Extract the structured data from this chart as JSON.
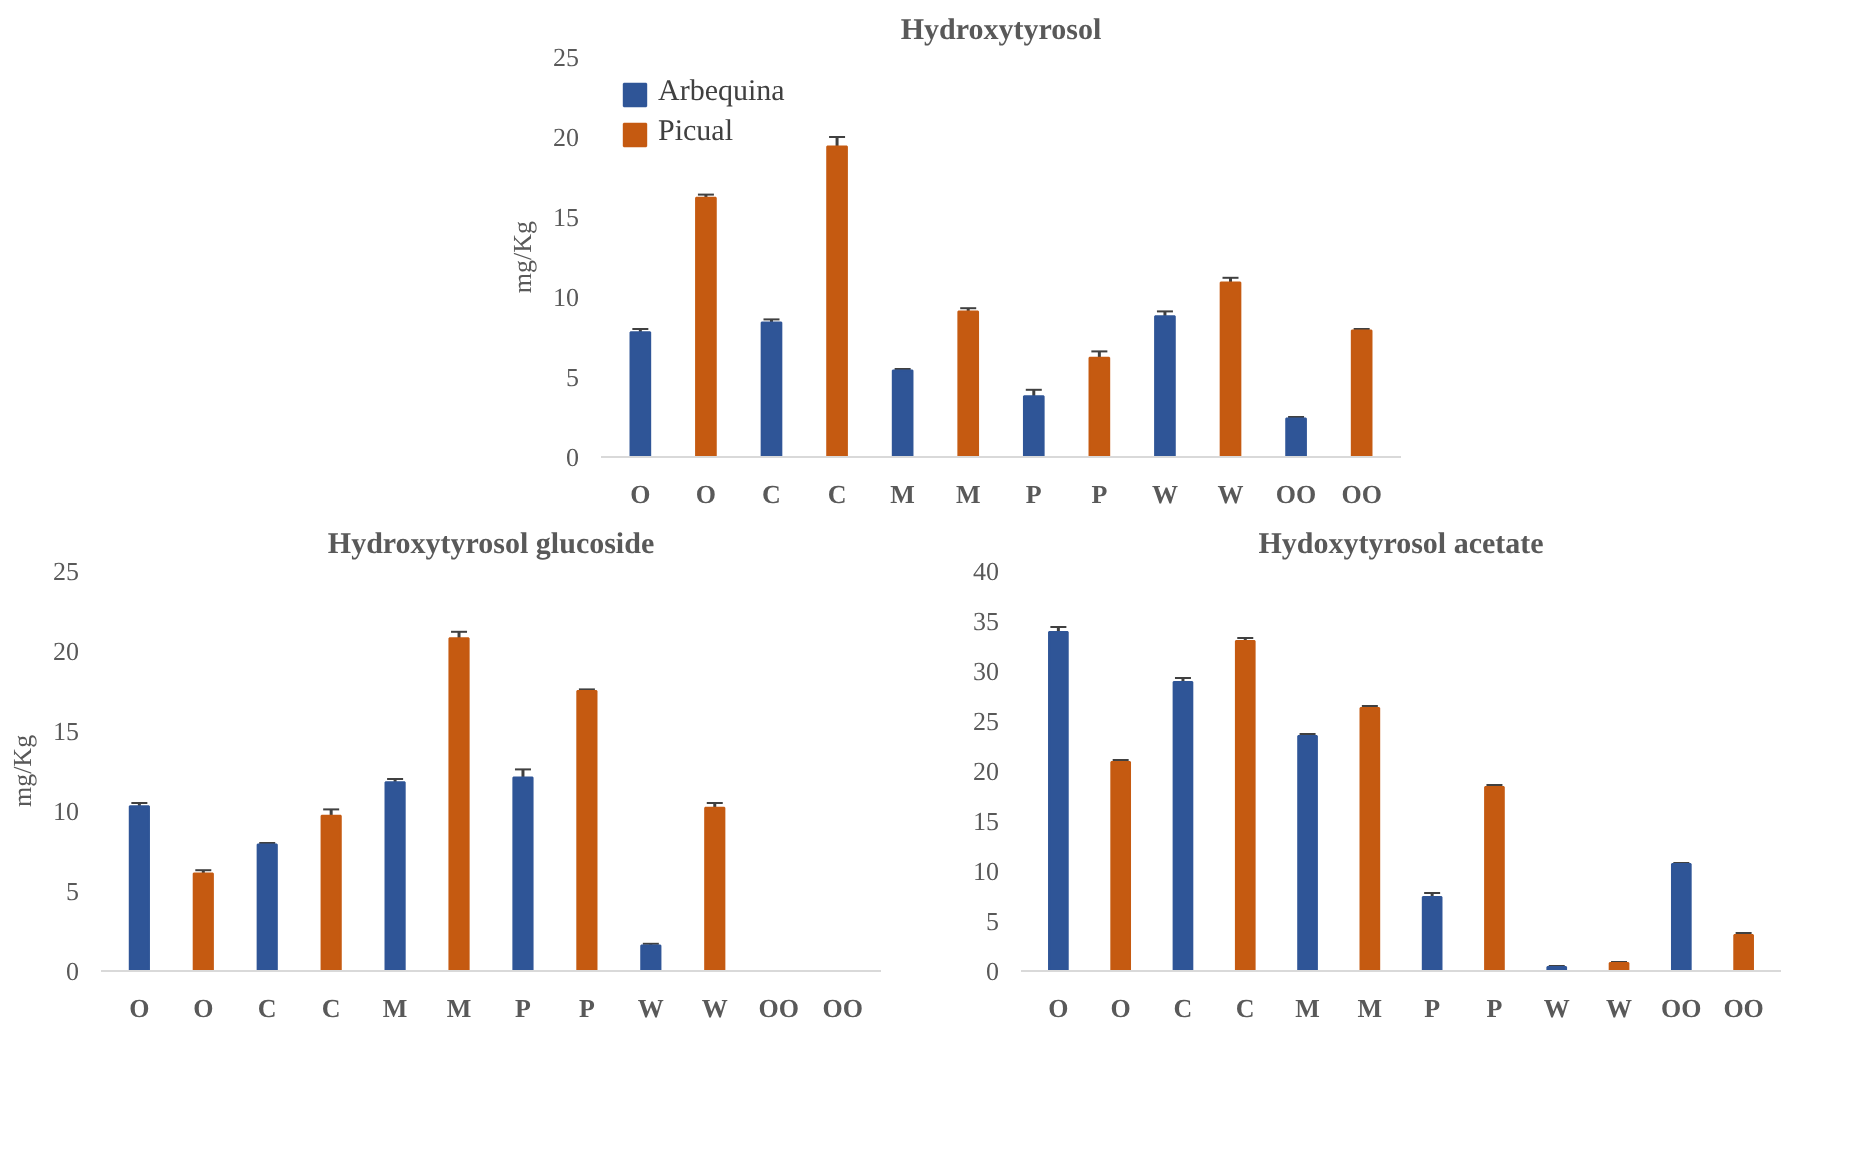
{
  "chart_data": [
    {
      "type": "bar",
      "title": "Hydroxytyrosol",
      "ylabel": "mg/Kg",
      "categories": [
        "O",
        "O",
        "C",
        "C",
        "M",
        "M",
        "P",
        "P",
        "W",
        "W",
        "OO",
        "OO"
      ],
      "ylim": [
        0,
        25
      ],
      "yticks": [
        0,
        5,
        10,
        15,
        20,
        25
      ],
      "grid": false,
      "legend": "top left",
      "series": [
        {
          "name": "Arbequina",
          "color": "#2f5597",
          "values": [
            7.8,
            null,
            8.4,
            null,
            5.4,
            null,
            3.8,
            null,
            8.8,
            null,
            2.4,
            null
          ],
          "errors": [
            0.2,
            null,
            0.2,
            null,
            0.1,
            null,
            0.4,
            null,
            0.3,
            null,
            0.1,
            null
          ]
        },
        {
          "name": "Picual",
          "color": "#c55a11",
          "values": [
            null,
            16.2,
            null,
            19.4,
            null,
            9.1,
            null,
            6.2,
            null,
            10.9,
            null,
            7.9
          ],
          "errors": [
            null,
            0.2,
            null,
            0.6,
            null,
            0.2,
            null,
            0.4,
            null,
            0.3,
            null,
            0.1
          ]
        }
      ]
    },
    {
      "type": "bar",
      "title": "Hydroxytyrosol glucoside",
      "ylabel": "mg/Kg",
      "categories": [
        "O",
        "O",
        "C",
        "C",
        "M",
        "M",
        "P",
        "P",
        "W",
        "W",
        "OO",
        "OO"
      ],
      "ylim": [
        0,
        25
      ],
      "yticks": [
        0,
        5,
        10,
        15,
        20,
        25
      ],
      "grid": false,
      "series": [
        {
          "color": "#2f5597",
          "values": [
            10.3,
            null,
            7.9,
            null,
            11.8,
            null,
            12.1,
            null,
            1.6,
            null,
            null,
            null
          ],
          "errors": [
            0.2,
            null,
            0.1,
            null,
            0.2,
            null,
            0.5,
            null,
            0.1,
            null,
            null,
            null
          ]
        },
        {
          "color": "#c55a11",
          "values": [
            null,
            6.1,
            null,
            9.7,
            null,
            20.8,
            null,
            17.5,
            null,
            10.2,
            null,
            null
          ],
          "errors": [
            null,
            0.2,
            null,
            0.4,
            null,
            0.4,
            null,
            0.1,
            null,
            0.3,
            null,
            null
          ]
        }
      ]
    },
    {
      "type": "bar",
      "title": "Hydoxytyrosol acetate",
      "categories": [
        "O",
        "O",
        "C",
        "C",
        "M",
        "M",
        "P",
        "P",
        "W",
        "W",
        "OO",
        "OO"
      ],
      "ylim": [
        0,
        40
      ],
      "yticks": [
        0,
        5,
        10,
        15,
        20,
        25,
        30,
        35,
        40
      ],
      "grid": false,
      "series": [
        {
          "color": "#2f5597",
          "values": [
            33.9,
            null,
            28.9,
            null,
            23.5,
            null,
            7.4,
            null,
            0.4,
            null,
            10.7,
            null
          ],
          "errors": [
            0.5,
            null,
            0.4,
            null,
            0.2,
            null,
            0.4,
            null,
            0.1,
            null,
            0.1,
            null
          ]
        },
        {
          "color": "#c55a11",
          "values": [
            null,
            20.9,
            null,
            33.0,
            null,
            26.3,
            null,
            18.4,
            null,
            0.8,
            null,
            3.6
          ],
          "errors": [
            null,
            0.2,
            null,
            0.3,
            null,
            0.2,
            null,
            0.2,
            null,
            0.1,
            null,
            0.2
          ]
        }
      ]
    }
  ]
}
